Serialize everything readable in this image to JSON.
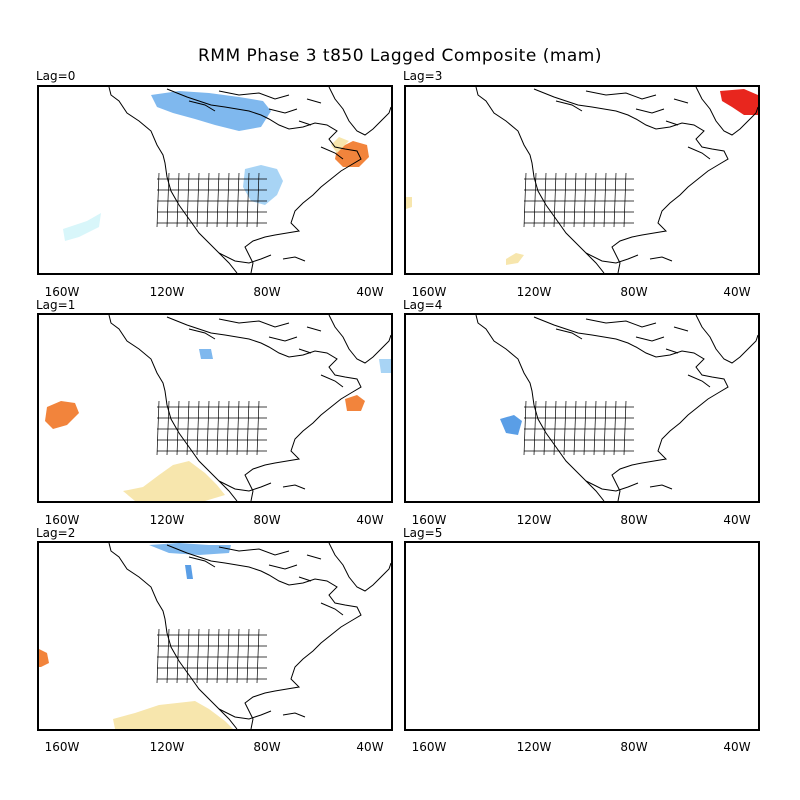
{
  "title": "RMM Phase 3 t850 Lagged Composite (mam)",
  "panels": [
    {
      "label": "Lag=0",
      "has_map": true,
      "anomalies": [
        {
          "color": "#7fb8ee",
          "region": "northern-canada-cold"
        },
        {
          "color": "#a8d4f5",
          "region": "great-lakes-cold"
        },
        {
          "color": "#d8f6fa",
          "region": "eastern-pacific-cold"
        },
        {
          "color": "#f2843c",
          "region": "newfoundland-warm"
        },
        {
          "color": "#f7e6ad",
          "region": "newfoundland-warm-edge"
        }
      ]
    },
    {
      "label": "Lag=3",
      "has_map": true,
      "anomalies": [
        {
          "color": "#e8261e",
          "region": "greenland-warm"
        },
        {
          "color": "#f7e6ad",
          "region": "subtropical-pacific-warm"
        },
        {
          "color": "#f7e6ad",
          "region": "west-edge-warm"
        }
      ]
    },
    {
      "label": "Lag=1",
      "has_map": true,
      "anomalies": [
        {
          "color": "#f2843c",
          "region": "northeast-pacific-warm"
        },
        {
          "color": "#f7e6ad",
          "region": "eastern-pacific-warm"
        },
        {
          "color": "#f2843c",
          "region": "north-atlantic-warm"
        },
        {
          "color": "#7fb8ee",
          "region": "central-canada-cold"
        },
        {
          "color": "#a8d4f5",
          "region": "greenland-cold"
        }
      ]
    },
    {
      "label": "Lag=4",
      "has_map": true,
      "anomalies": [
        {
          "color": "#5a9ee6",
          "region": "california-coast-cold"
        }
      ]
    },
    {
      "label": "Lag=2",
      "has_map": true,
      "anomalies": [
        {
          "color": "#7fb8ee",
          "region": "arctic-cold"
        },
        {
          "color": "#5a9ee6",
          "region": "canada-cold"
        },
        {
          "color": "#f2843c",
          "region": "west-edge-warm"
        },
        {
          "color": "#f7e6ad",
          "region": "eastern-pacific-warm"
        }
      ]
    },
    {
      "label": "Lag=5",
      "has_map": false,
      "anomalies": []
    }
  ],
  "x_ticks": [
    "160W",
    "120W",
    "80W",
    "40W"
  ]
}
